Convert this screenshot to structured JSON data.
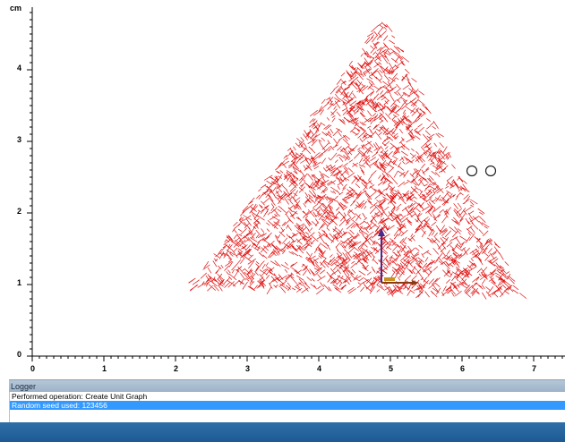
{
  "plot": {
    "unit_label": "cm",
    "x_ticks": [
      "0",
      "1",
      "2",
      "3",
      "4",
      "5",
      "6",
      "7"
    ],
    "y_ticks": [
      "0",
      "1",
      "2",
      "3",
      "4"
    ],
    "colors": {
      "mesh": "#e01010",
      "axis_y_arrow": "#4a2a8a",
      "axis_x_arrow": "#8a3a10"
    }
  },
  "logger": {
    "title": "Logger",
    "lines": [
      "Performed operation: Create Unit Graph",
      "Random seed used: 123456"
    ],
    "selected_index": 1
  }
}
